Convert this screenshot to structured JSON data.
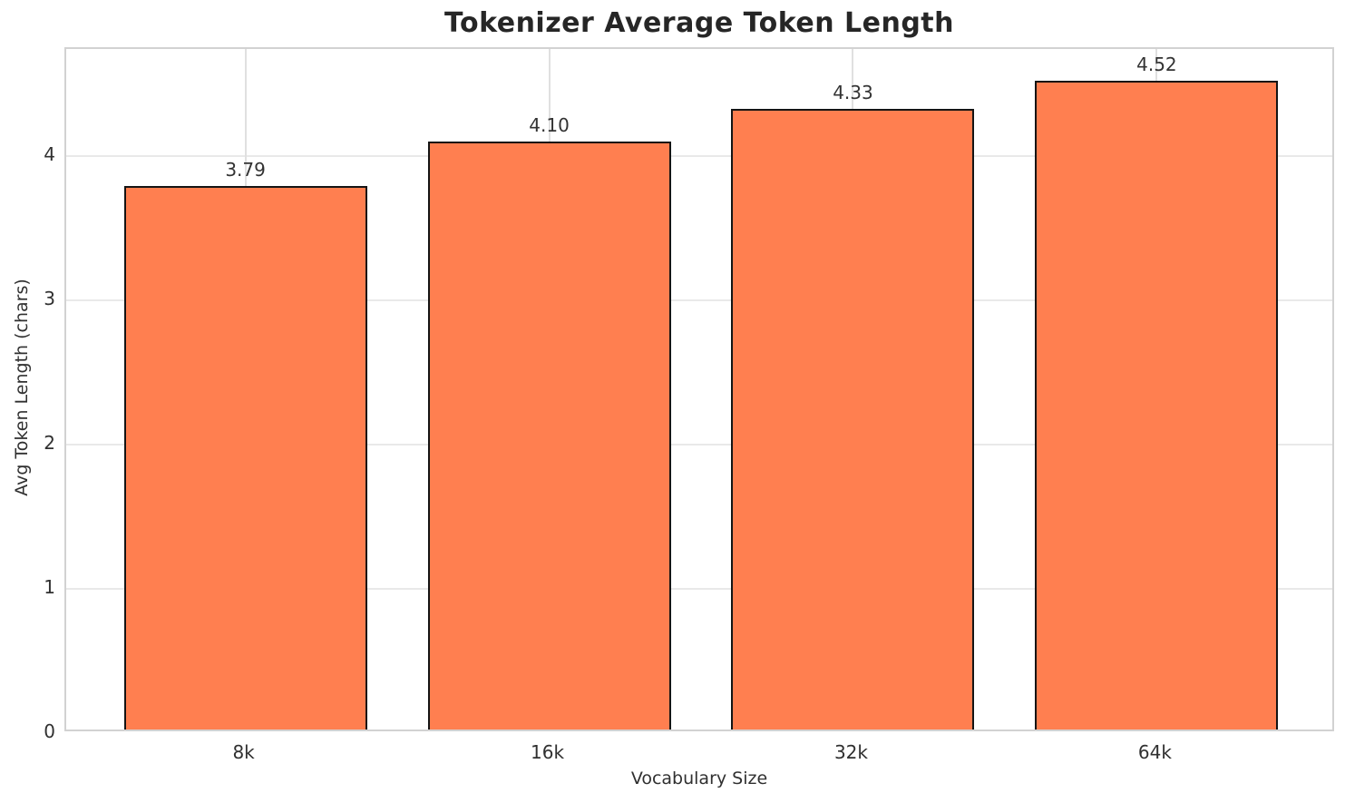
{
  "chart_data": {
    "type": "bar",
    "title": "Tokenizer Average Token Length",
    "xlabel": "Vocabulary Size",
    "ylabel": "Avg Token Length (chars)",
    "categories": [
      "8k",
      "16k",
      "32k",
      "64k"
    ],
    "values": [
      3.79,
      4.1,
      4.33,
      4.52
    ],
    "value_labels": [
      "3.79",
      "4.10",
      "4.33",
      "4.52"
    ],
    "yticks": [
      0,
      1,
      2,
      3,
      4
    ],
    "ylim": [
      0,
      4.742
    ],
    "xlim": [
      -0.59,
      3.59
    ],
    "bar_width": 0.8,
    "bar_color": "#FF7F50",
    "bar_edge_color": "#141414",
    "grid": true,
    "grid_color": "#e9e9e9",
    "background_color": "#ffffff",
    "legend_position": "none"
  }
}
